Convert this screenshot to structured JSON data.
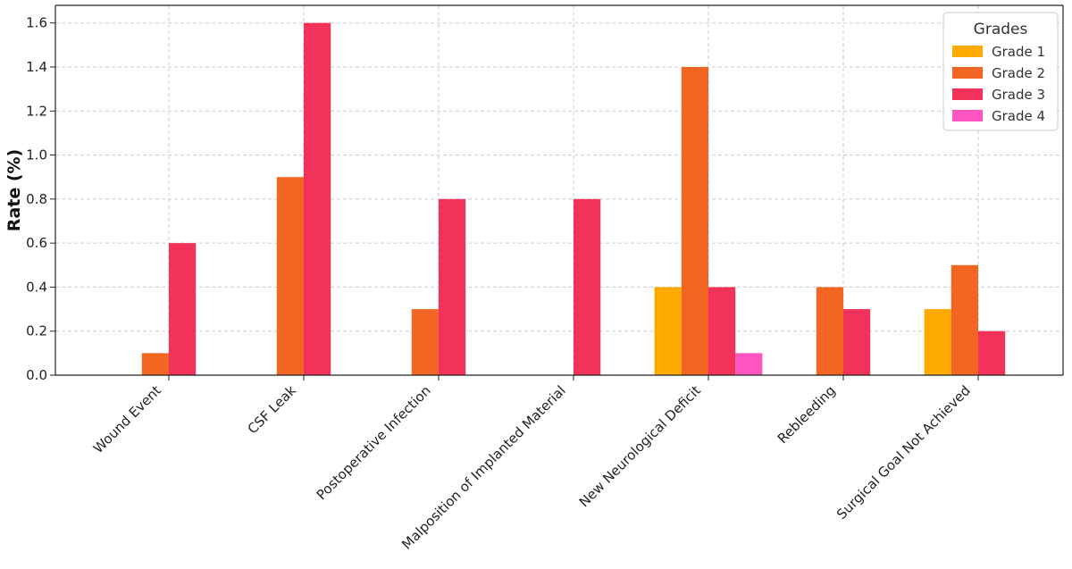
{
  "chart_data": {
    "type": "bar",
    "title": "",
    "xlabel": "",
    "ylabel": "Rate (%)",
    "ylim": [
      0,
      1.68
    ],
    "yticks": [
      "0.0",
      "0.2",
      "0.4",
      "0.6",
      "0.8",
      "1.0",
      "1.2",
      "1.4",
      "1.6"
    ],
    "grid": true,
    "legend": {
      "title": "Grades",
      "placement": "top-right"
    },
    "categories": [
      "Wound Event",
      "CSF Leak",
      "Postoperative Infection",
      "Malposition of Implanted Material",
      "New Neurological Deficit",
      "Rebleeding",
      "Surgical Goal Not Achieved"
    ],
    "series": [
      {
        "name": "Grade 1",
        "color": "#FFAA00",
        "values": [
          0,
          0,
          0,
          0,
          0.4,
          0,
          0.3
        ]
      },
      {
        "name": "Grade 2",
        "color": "#F26522",
        "values": [
          0.1,
          0.9,
          0.3,
          0,
          1.4,
          0.4,
          0.5
        ]
      },
      {
        "name": "Grade 3",
        "color": "#F2325A",
        "values": [
          0.6,
          1.6,
          0.8,
          0.8,
          0.4,
          0.3,
          0.2
        ]
      },
      {
        "name": "Grade 4",
        "color": "#FF55C0",
        "values": [
          0,
          0,
          0,
          0,
          0.1,
          0,
          0
        ]
      }
    ]
  }
}
